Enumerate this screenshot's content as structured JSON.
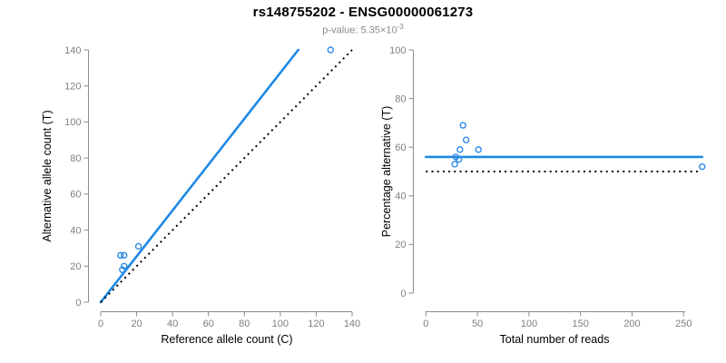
{
  "header": {
    "title": "rs148755202 - ENSG00000061273",
    "pvalue_prefix": "p-value: ",
    "pvalue_base": "5.35×10",
    "pvalue_exponent": "-3"
  },
  "colors": {
    "line_blue": "#1E88E5",
    "point_blue": "#2E8BE6",
    "identity_black": "#000000",
    "axis_gray": "#8C8C8C",
    "tick_label_gray": "#7F7F7F",
    "subtitle_gray": "#8C8C8C",
    "title_color": "#000000",
    "background": "#FFFFFF"
  },
  "chart_data": [
    {
      "type": "scatter",
      "title": "",
      "xlabel": "Reference allele count (C)",
      "ylabel": "Alternative allele count (T)",
      "xlim": [
        0,
        140
      ],
      "ylim": [
        0,
        140
      ],
      "xticks": [
        0,
        20,
        40,
        60,
        80,
        100,
        120,
        140
      ],
      "yticks": [
        0,
        20,
        40,
        60,
        80,
        100,
        120,
        140
      ],
      "grid": false,
      "legend_position": "none",
      "points": [
        [
          11,
          26
        ],
        [
          13,
          26
        ],
        [
          12,
          18
        ],
        [
          13,
          20
        ],
        [
          21,
          31
        ],
        [
          128,
          140
        ]
      ],
      "lines": [
        {
          "name": "fitted-allelic-ratio",
          "style": "solid",
          "color_key": "line_blue",
          "x": [
            0,
            110
          ],
          "y": [
            0,
            140
          ]
        },
        {
          "name": "identity-50pct",
          "style": "dotted",
          "color_key": "identity_black",
          "x": [
            0,
            140
          ],
          "y": [
            0,
            140
          ]
        }
      ]
    },
    {
      "type": "scatter",
      "title": "",
      "xlabel": "Total number of reads",
      "ylabel": "Percentage alternative (T)",
      "xlim": [
        0,
        250
      ],
      "ylim": [
        0,
        100
      ],
      "xticks": [
        0,
        50,
        100,
        150,
        200,
        250
      ],
      "yticks": [
        0,
        20,
        40,
        60,
        80,
        100
      ],
      "grid": false,
      "legend_position": "none",
      "points": [
        [
          36,
          69
        ],
        [
          39,
          63
        ],
        [
          33,
          59
        ],
        [
          51,
          59
        ],
        [
          29,
          56
        ],
        [
          32,
          55
        ],
        [
          28,
          53
        ],
        [
          268,
          52
        ]
      ],
      "lines": [
        {
          "name": "fitted-percentage",
          "style": "solid",
          "color_key": "line_blue",
          "x": [
            0,
            268
          ],
          "y": [
            56,
            56
          ]
        },
        {
          "name": "null-50pct",
          "style": "dotted",
          "color_key": "identity_black",
          "x": [
            0,
            264
          ],
          "y": [
            50,
            50
          ]
        }
      ]
    }
  ]
}
